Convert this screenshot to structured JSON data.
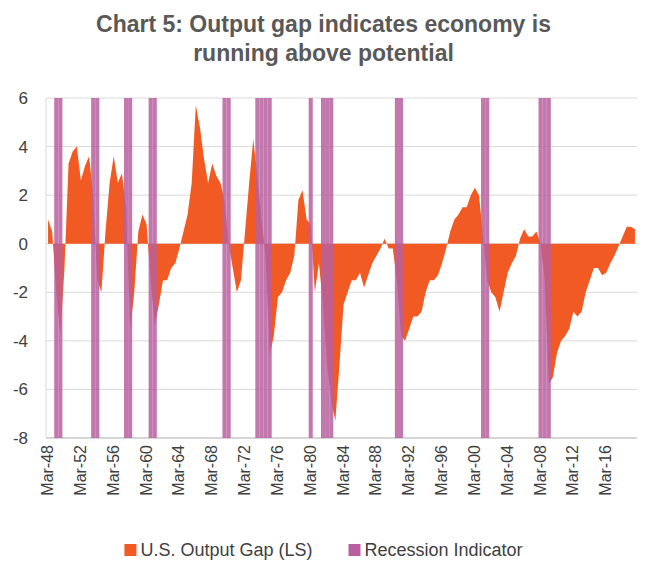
{
  "chart_data": {
    "type": "area",
    "title": "Chart 5: Output gap indicates economy is running above potential",
    "categories": [
      "Mar-48",
      null,
      null,
      null,
      null,
      null,
      null,
      null,
      "Mar-52",
      null,
      null,
      null,
      null,
      null,
      null,
      null,
      "Mar-56",
      null,
      null,
      null,
      null,
      null,
      null,
      null,
      "Mar-60",
      null,
      null,
      null,
      null,
      null,
      null,
      null,
      "Mar-64",
      null,
      null,
      null,
      null,
      null,
      null,
      null,
      "Mar-68",
      null,
      null,
      null,
      null,
      null,
      null,
      null,
      "Mar-72",
      null,
      null,
      null,
      null,
      null,
      null,
      null,
      "Mar-76",
      null,
      null,
      null,
      null,
      null,
      null,
      null,
      "Mar-80",
      null,
      null,
      null,
      null,
      null,
      null,
      null,
      "Mar-84",
      null,
      null,
      null,
      null,
      null,
      null,
      null,
      "Mar-88",
      null,
      null,
      null,
      null,
      null,
      null,
      null,
      "Mar-92",
      null,
      null,
      null,
      null,
      null,
      null,
      null,
      "Mar-96",
      null,
      null,
      null,
      null,
      null,
      null,
      null,
      "Mar-00",
      null,
      null,
      null,
      null,
      null,
      null,
      null,
      "Mar-04",
      null,
      null,
      null,
      null,
      null,
      null,
      null,
      "Mar-08",
      null,
      null,
      null,
      null,
      null,
      null,
      null,
      "Mar-12",
      null,
      null,
      null,
      null,
      null,
      null,
      null,
      "Mar-16",
      null,
      null,
      null,
      null,
      null,
      null,
      null
    ],
    "series": [
      {
        "name": "U.S. Output Gap (LS)",
        "color": "#f15a22",
        "type": "area",
        "values": [
          1.0,
          0.5,
          -2.0,
          -3.8,
          -1.0,
          3.3,
          3.8,
          4.0,
          2.6,
          3.2,
          3.6,
          2.0,
          -1.5,
          -2.0,
          0.5,
          2.5,
          3.6,
          2.5,
          2.9,
          1.5,
          -3.6,
          -2.0,
          0.5,
          1.2,
          0.8,
          -1.5,
          -3.4,
          -2.5,
          -1.5,
          -1.5,
          -1.0,
          -0.8,
          -0.2,
          0.5,
          1.2,
          2.5,
          5.7,
          4.8,
          3.5,
          2.5,
          3.3,
          2.8,
          2.5,
          1.8,
          0.0,
          -1.0,
          -2.0,
          -1.5,
          0.5,
          2.5,
          4.3,
          2.8,
          1.0,
          -0.5,
          -4.6,
          -3.8,
          -2.2,
          -2.0,
          -1.5,
          -1.2,
          -0.5,
          1.8,
          2.2,
          1.0,
          0.8,
          -2.0,
          -0.8,
          -2.5,
          -5.0,
          -6.5,
          -7.3,
          -5.0,
          -2.5,
          -2.0,
          -1.5,
          -1.5,
          -1.2,
          -1.8,
          -1.3,
          -0.8,
          -0.5,
          -0.2,
          0.2,
          -0.2,
          -0.2,
          -1.5,
          -3.8,
          -4.0,
          -3.5,
          -3.0,
          -3.0,
          -2.8,
          -2.0,
          -1.5,
          -1.5,
          -1.3,
          -0.8,
          -0.2,
          0.5,
          1.0,
          1.2,
          1.5,
          1.5,
          2.0,
          2.3,
          2.0,
          0.3,
          -1.5,
          -2.0,
          -2.2,
          -2.8,
          -2.0,
          -1.2,
          -0.8,
          -0.5,
          0.2,
          0.6,
          0.3,
          0.3,
          0.5,
          0.0,
          -1.5,
          -5.8,
          -5.5,
          -4.5,
          -4.0,
          -3.8,
          -3.5,
          -2.8,
          -3.0,
          -2.8,
          -2.0,
          -1.5,
          -1.0,
          -1.0,
          -1.3,
          -1.2,
          -0.8,
          -0.5,
          -0.1,
          0.3,
          0.7,
          0.7,
          0.6
        ]
      },
      {
        "name": "Recession Indicator",
        "color": "#b8609f",
        "type": "bar",
        "axis": "y2",
        "values": [
          0,
          0,
          1,
          1,
          0,
          0,
          0,
          0,
          0,
          0,
          0,
          1,
          1,
          0,
          0,
          0,
          0,
          0,
          0,
          1,
          1,
          0,
          0,
          0,
          0,
          1,
          1,
          0,
          0,
          0,
          0,
          0,
          0,
          0,
          0,
          0,
          0,
          0,
          0,
          0,
          0,
          0,
          0,
          1,
          1,
          0,
          0,
          0,
          0,
          0,
          0,
          1,
          1,
          1,
          1,
          0,
          0,
          0,
          0,
          0,
          0,
          0,
          0,
          0,
          1,
          0,
          0,
          1,
          1,
          1,
          0,
          0,
          0,
          0,
          0,
          0,
          0,
          0,
          0,
          0,
          0,
          0,
          0,
          0,
          0,
          1,
          1,
          0,
          0,
          0,
          0,
          0,
          0,
          0,
          0,
          0,
          0,
          0,
          0,
          0,
          0,
          0,
          0,
          0,
          0,
          0,
          1,
          1,
          0,
          0,
          0,
          0,
          0,
          0,
          0,
          0,
          0,
          0,
          0,
          0,
          1,
          1,
          1,
          0,
          0,
          0,
          0,
          0,
          0,
          0,
          0,
          0,
          0,
          0,
          0,
          0,
          0,
          0,
          0,
          0,
          0,
          0,
          0,
          0
        ]
      }
    ],
    "ylim": [
      -8,
      6
    ],
    "yticks": [
      -8,
      -6,
      -4,
      -2,
      0,
      2,
      4,
      6
    ],
    "y2lim": [
      0,
      1
    ],
    "y2ticks": [],
    "grid": true,
    "legend": "bottom"
  }
}
